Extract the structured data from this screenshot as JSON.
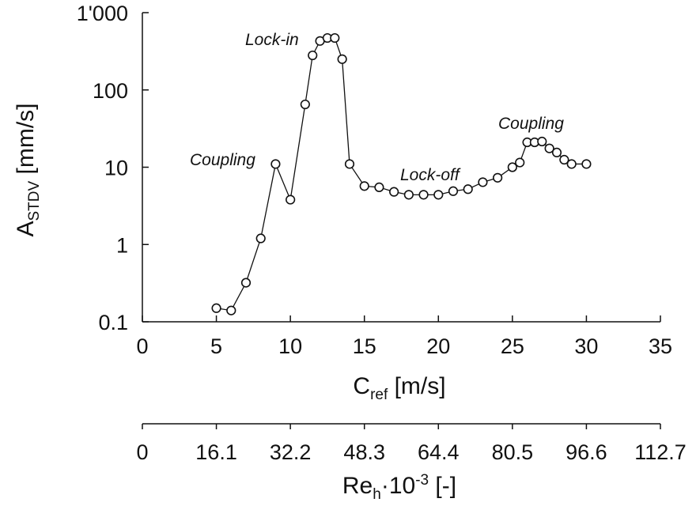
{
  "chart_data": {
    "type": "scatter",
    "ylabel": {
      "main": "A",
      "sub": "STDV",
      "unit": " [mm/s]"
    },
    "xlabel": {
      "main": "C",
      "sub": "ref",
      "unit": " [m/s]"
    },
    "xlabel2": {
      "main": "Re",
      "sub": "h",
      "rest": "·10",
      "sup": "-3",
      "unit": " [-]"
    },
    "xlim": [
      0,
      35
    ],
    "ylim": [
      0.1,
      1000
    ],
    "yscale": "log",
    "x_ticks": [
      "0",
      "5",
      "10",
      "15",
      "20",
      "25",
      "30",
      "35"
    ],
    "y_ticks": [
      "0.1",
      "1",
      "10",
      "100",
      "1'000"
    ],
    "x2_ticks": [
      "0",
      "16.1",
      "32.2",
      "48.3",
      "64.4",
      "80.5",
      "96.6",
      "112.7"
    ],
    "grid": false,
    "series": [
      {
        "x": [
          5,
          6,
          7,
          8,
          9,
          10,
          11,
          11.5,
          12,
          12.5,
          13,
          13.5,
          14,
          15,
          16,
          17,
          18,
          19,
          20,
          21,
          22,
          23,
          24,
          25,
          25.5,
          26,
          26.5,
          27,
          27.5,
          28,
          28.5,
          29,
          30
        ],
        "y": [
          0.15,
          0.14,
          0.32,
          1.2,
          11,
          3.8,
          65,
          280,
          430,
          470,
          470,
          250,
          11,
          5.7,
          5.5,
          4.8,
          4.4,
          4.4,
          4.4,
          4.9,
          5.2,
          6.4,
          7.3,
          10,
          11.5,
          21,
          21,
          21.5,
          17.5,
          15.5,
          12.5,
          11,
          11
        ]
      }
    ],
    "annotations": [
      "Lock-in",
      "Coupling",
      "Lock-off",
      "Coupling"
    ]
  }
}
